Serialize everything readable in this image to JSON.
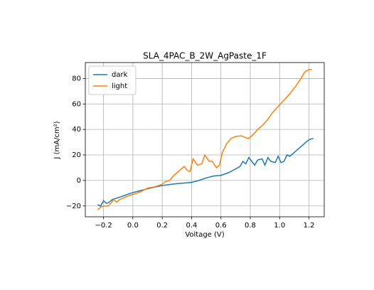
{
  "chart_data": {
    "type": "line",
    "title": "SLA_4PAC_B_2W_AgPaste_1F",
    "x_label": "Voltage (V)",
    "y_label": "J (mA/cm²)",
    "xlim": [
      -0.324,
      1.304
    ],
    "ylim": [
      -28.5,
      92.5
    ],
    "xticks": [
      {
        "value": -0.2,
        "label": "−0.2"
      },
      {
        "value": 0,
        "label": "0.0"
      },
      0.2,
      0.4,
      0.6,
      0.8,
      {
        "value": 1,
        "label": "1.0"
      },
      1.2
    ],
    "yticks": [
      {
        "value": -20,
        "label": "−20"
      },
      0,
      20,
      40,
      60,
      80
    ],
    "grid": true,
    "legend": "upper left",
    "series": [
      {
        "name": "dark",
        "color": "#1f77b4",
        "x": [
          -0.24,
          -0.22,
          -0.2,
          -0.18,
          -0.16,
          -0.14,
          -0.1,
          -0.05,
          0,
          0.05,
          0.1,
          0.15,
          0.2,
          0.25,
          0.3,
          0.35,
          0.4,
          0.45,
          0.5,
          0.55,
          0.6,
          0.65,
          0.7,
          0.73,
          0.75,
          0.77,
          0.79,
          0.81,
          0.83,
          0.85,
          0.88,
          0.9,
          0.92,
          0.94,
          0.97,
          0.99,
          1.01,
          1.03,
          1.05,
          1.07,
          1.1,
          1.15,
          1.2,
          1.23
        ],
        "values": [
          -19,
          -20,
          -16,
          -18,
          -17,
          -15,
          -13.5,
          -11.5,
          -9.5,
          -8,
          -6.5,
          -5.2,
          -4,
          -3.2,
          -2.5,
          -2,
          -1.5,
          0,
          2,
          3.5,
          4,
          6,
          9,
          11,
          15,
          13,
          18,
          15,
          12,
          16,
          17,
          12,
          18,
          15,
          14,
          19,
          14,
          15,
          20,
          19,
          22,
          27,
          32,
          33
        ]
      },
      {
        "name": "light",
        "color": "#ff7f0e",
        "x": [
          -0.24,
          -0.22,
          -0.2,
          -0.17,
          -0.15,
          -0.13,
          -0.11,
          -0.09,
          -0.05,
          0,
          0.05,
          0.1,
          0.15,
          0.2,
          0.22,
          0.25,
          0.28,
          0.32,
          0.35,
          0.37,
          0.39,
          0.41,
          0.44,
          0.47,
          0.49,
          0.52,
          0.54,
          0.57,
          0.59,
          0.61,
          0.64,
          0.67,
          0.7,
          0.74,
          0.77,
          0.79,
          0.82,
          0.85,
          0.89,
          0.92,
          0.95,
          0.99,
          1.03,
          1.07,
          1.11,
          1.14,
          1.17,
          1.2,
          1.22
        ],
        "values": [
          -23,
          -21,
          -20,
          -20,
          -18,
          -15,
          -17,
          -15,
          -13,
          -11,
          -9,
          -6,
          -5,
          -3,
          -1,
          0,
          4,
          8,
          11,
          8,
          7,
          17,
          12,
          13,
          20,
          15,
          15,
          10,
          12,
          22,
          29,
          33,
          34.5,
          35,
          33.5,
          33,
          36,
          40,
          44,
          48,
          53,
          58,
          63,
          68,
          74,
          79,
          85,
          87,
          87
        ]
      }
    ]
  }
}
